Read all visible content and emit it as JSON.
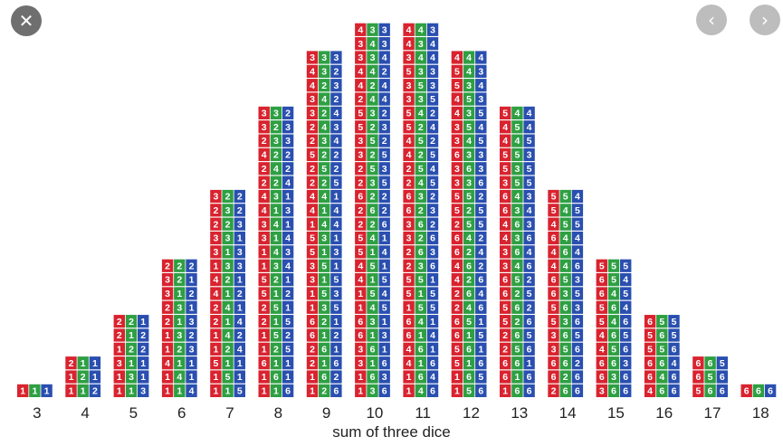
{
  "controls": {
    "close_icon": "✕",
    "prev_icon": "‹",
    "next_icon": "›"
  },
  "colors": {
    "die1": "#d9232f",
    "die2": "#2ea043",
    "die3": "#2a4fb0",
    "text": "#222222"
  },
  "chart_data": {
    "type": "bar",
    "xlabel": "sum of three dice",
    "categories": [
      "3",
      "4",
      "5",
      "6",
      "7",
      "8",
      "9",
      "10",
      "11",
      "12",
      "13",
      "14",
      "15",
      "16",
      "17",
      "18"
    ],
    "values": [
      1,
      3,
      6,
      10,
      15,
      21,
      25,
      27,
      27,
      25,
      21,
      15,
      10,
      6,
      3,
      1
    ],
    "stacks": {
      "3": [
        "111"
      ],
      "4": [
        "112",
        "121",
        "211"
      ],
      "5": [
        "113",
        "131",
        "311",
        "122",
        "212",
        "221"
      ],
      "6": [
        "114",
        "141",
        "411",
        "123",
        "132",
        "213",
        "231",
        "312",
        "321",
        "222"
      ],
      "7": [
        "115",
        "151",
        "511",
        "124",
        "142",
        "214",
        "241",
        "412",
        "421",
        "133",
        "313",
        "331",
        "223",
        "232",
        "322"
      ],
      "8": [
        "116",
        "161",
        "611",
        "125",
        "152",
        "215",
        "251",
        "512",
        "521",
        "134",
        "143",
        "314",
        "341",
        "413",
        "431",
        "224",
        "242",
        "422",
        "233",
        "323",
        "332"
      ],
      "9": [
        "126",
        "162",
        "216",
        "261",
        "612",
        "621",
        "135",
        "153",
        "315",
        "351",
        "513",
        "531",
        "144",
        "414",
        "441",
        "225",
        "252",
        "522",
        "234",
        "243",
        "324",
        "342",
        "423",
        "432",
        "333"
      ],
      "10": [
        "136",
        "163",
        "316",
        "361",
        "613",
        "631",
        "145",
        "154",
        "415",
        "451",
        "514",
        "541",
        "226",
        "262",
        "622",
        "235",
        "253",
        "325",
        "352",
        "523",
        "532",
        "244",
        "424",
        "442",
        "334",
        "343",
        "433"
      ],
      "11": [
        "146",
        "164",
        "416",
        "461",
        "614",
        "641",
        "155",
        "515",
        "551",
        "236",
        "263",
        "326",
        "362",
        "623",
        "632",
        "245",
        "254",
        "425",
        "452",
        "524",
        "542",
        "335",
        "353",
        "533",
        "344",
        "434",
        "443"
      ],
      "12": [
        "156",
        "165",
        "516",
        "561",
        "615",
        "651",
        "246",
        "264",
        "426",
        "462",
        "624",
        "642",
        "255",
        "525",
        "552",
        "336",
        "363",
        "633",
        "345",
        "354",
        "435",
        "453",
        "534",
        "543",
        "444"
      ],
      "13": [
        "166",
        "616",
        "661",
        "256",
        "265",
        "526",
        "562",
        "625",
        "652",
        "346",
        "364",
        "436",
        "463",
        "634",
        "643",
        "355",
        "535",
        "553",
        "445",
        "454",
        "544"
      ],
      "14": [
        "266",
        "626",
        "662",
        "356",
        "365",
        "536",
        "563",
        "635",
        "653",
        "446",
        "464",
        "644",
        "455",
        "545",
        "554"
      ],
      "15": [
        "366",
        "636",
        "663",
        "456",
        "465",
        "546",
        "564",
        "645",
        "654",
        "555"
      ],
      "16": [
        "466",
        "646",
        "664",
        "556",
        "565",
        "655"
      ],
      "17": [
        "566",
        "656",
        "665"
      ],
      "18": [
        "666"
      ]
    }
  }
}
